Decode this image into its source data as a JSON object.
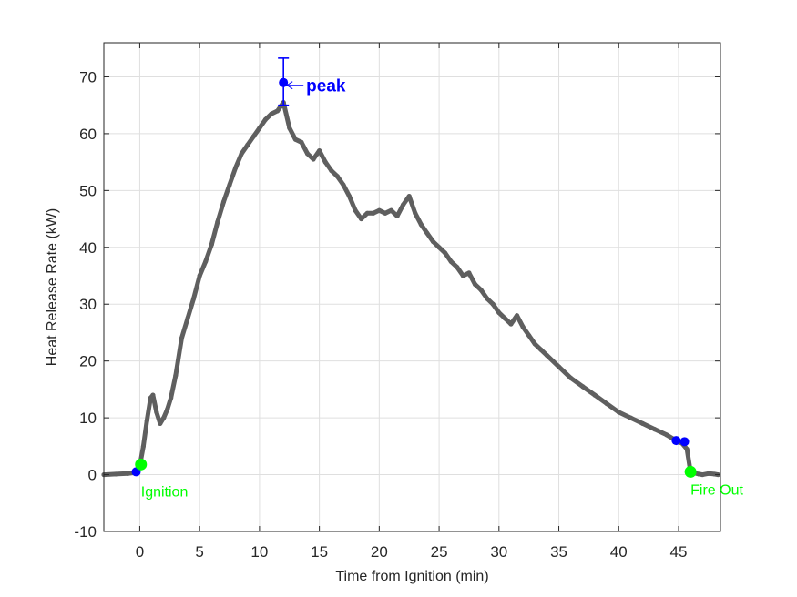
{
  "chart_data": {
    "type": "line",
    "xlabel": "Time from Ignition (min)",
    "ylabel": "Heat Release Rate (kW)",
    "xlim": [
      -3,
      48.5
    ],
    "ylim": [
      -10,
      76
    ],
    "xticks": [
      0,
      5,
      10,
      15,
      20,
      25,
      30,
      35,
      40,
      45
    ],
    "yticks": [
      -10,
      0,
      10,
      20,
      30,
      40,
      50,
      60,
      70
    ],
    "grid": true,
    "series": [
      {
        "color": "#5f5f5f",
        "x": [
          -3,
          -2,
          -1,
          -0.3,
          0,
          0.3,
          0.6,
          0.9,
          1.1,
          1.4,
          1.7,
          2.0,
          2.3,
          2.6,
          3.0,
          3.5,
          4.0,
          4.5,
          5.0,
          5.5,
          6.0,
          6.5,
          7.0,
          7.5,
          8.0,
          8.5,
          9.0,
          9.5,
          10.0,
          10.5,
          11.0,
          11.5,
          12.0,
          12.5,
          13.0,
          13.5,
          14.0,
          14.5,
          15.0,
          15.5,
          16.0,
          16.5,
          17.0,
          17.5,
          18.0,
          18.5,
          19.0,
          19.5,
          20.0,
          20.5,
          21.0,
          21.5,
          22.0,
          22.5,
          23.0,
          23.5,
          24.0,
          24.5,
          25.0,
          25.5,
          26.0,
          26.5,
          27.0,
          27.5,
          28.0,
          28.5,
          29.0,
          29.5,
          30.0,
          30.5,
          31.0,
          31.5,
          32.0,
          32.5,
          33.0,
          33.5,
          34.0,
          35.0,
          36.0,
          37.0,
          38.0,
          39.0,
          40.0,
          41.0,
          42.0,
          43.0,
          44.0,
          44.8,
          45.3,
          45.7,
          46.0,
          46.3,
          46.7,
          47.0,
          47.5,
          48.0,
          48.3
        ],
        "y": [
          0,
          0.1,
          0.2,
          0.4,
          1.5,
          5.0,
          9.5,
          13.5,
          14.0,
          11.0,
          9.0,
          10.0,
          11.5,
          13.5,
          17.5,
          24.0,
          27.5,
          31.0,
          35.0,
          37.5,
          40.5,
          44.5,
          48.0,
          51.0,
          54.0,
          56.5,
          58.0,
          59.5,
          61.0,
          62.5,
          63.5,
          64.0,
          65.5,
          61.0,
          59.0,
          58.5,
          56.5,
          55.5,
          57.0,
          55.0,
          53.5,
          52.5,
          51.0,
          49.0,
          46.5,
          45.0,
          46.0,
          46.0,
          46.5,
          46.0,
          46.5,
          45.5,
          47.5,
          49.0,
          46.0,
          44.0,
          42.5,
          41.0,
          40.0,
          39.0,
          37.5,
          36.5,
          35.0,
          35.5,
          33.5,
          32.5,
          31.0,
          30.0,
          28.5,
          27.5,
          26.5,
          28.0,
          26.0,
          24.5,
          23.0,
          22.0,
          21.0,
          19.0,
          17.0,
          15.5,
          14.0,
          12.5,
          11.0,
          10.0,
          9.0,
          8.0,
          7.0,
          6.0,
          5.5,
          4.5,
          0.5,
          0.3,
          0.1,
          0.0,
          0.2,
          0.1,
          0.0
        ]
      }
    ],
    "markers": {
      "blue": [
        {
          "x": -0.3,
          "y": 0.5
        },
        {
          "x": 12.0,
          "y": 69.0
        },
        {
          "x": 44.8,
          "y": 6.0
        },
        {
          "x": 45.5,
          "y": 5.8
        }
      ],
      "green": [
        {
          "x": 0.1,
          "y": 1.8
        },
        {
          "x": 46.0,
          "y": 0.5
        }
      ]
    },
    "errorbar": {
      "x": 12.0,
      "y": 69.0,
      "low": 65.0,
      "high": 73.3
    },
    "annotations": [
      {
        "text": "peak",
        "x": 12.0,
        "y": 69.0,
        "color": "#0000ff"
      },
      {
        "text": "Ignition",
        "x": 0.1,
        "y": 1.8,
        "color": "#00ff00"
      },
      {
        "text": "Fire Out",
        "x": 46.0,
        "y": 0.5,
        "color": "#00ff00"
      }
    ]
  }
}
